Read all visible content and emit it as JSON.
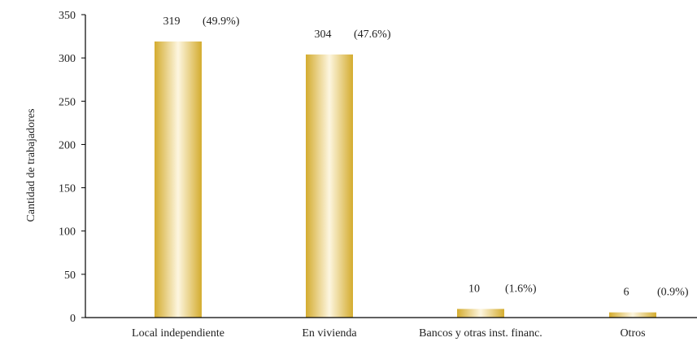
{
  "chart_data": {
    "type": "bar",
    "title": "",
    "xlabel": "",
    "ylabel": "Cantidad de trabajadores",
    "ylim": [
      0,
      350
    ],
    "yticks": [
      0,
      50,
      100,
      150,
      200,
      250,
      300,
      350
    ],
    "grid": false,
    "categories": [
      "Local independiente",
      "En vivienda",
      "Bancos y otras inst. financ.",
      "Otros"
    ],
    "values": [
      319,
      304,
      10,
      6
    ],
    "value_labels": [
      "319",
      "304",
      "10",
      "6"
    ],
    "percent_labels": [
      "(49.9%)",
      "(47.6%)",
      "(1.6%)",
      "(0.9%)"
    ],
    "bar_color": "#d4ac2f",
    "bar_highlight_color": "#fdf6e0"
  }
}
